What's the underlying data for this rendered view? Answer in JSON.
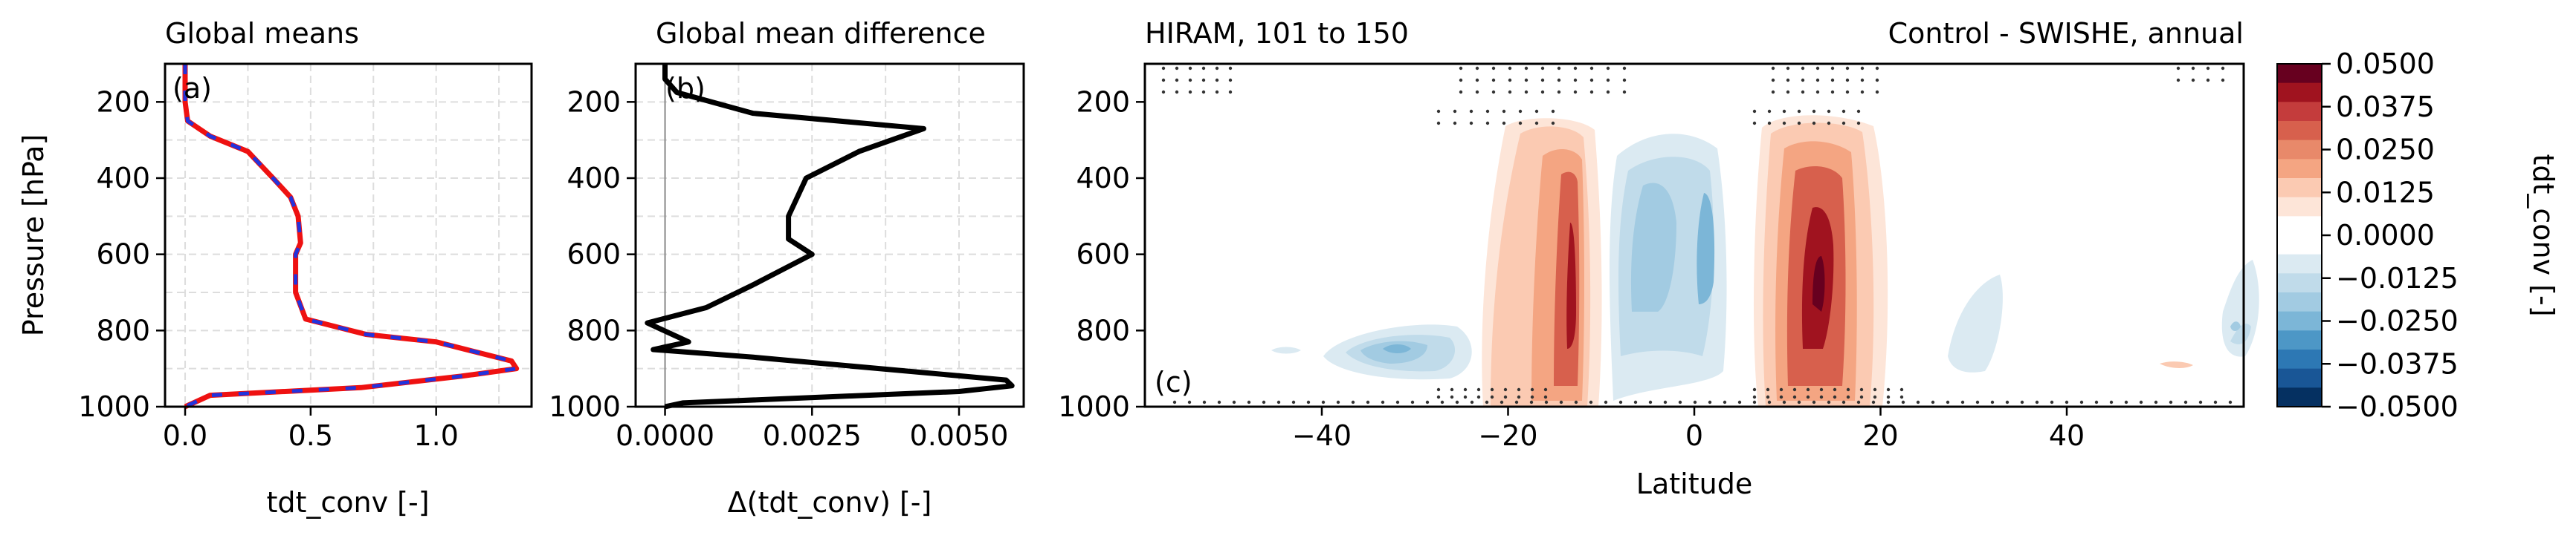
{
  "chart_data": [
    {
      "id": "a",
      "type": "line",
      "title": "Global means",
      "panel_label": "(a)",
      "xlabel": "tdt_conv [-]",
      "ylabel": "Pressure [hPa]",
      "xlim": [
        -0.08,
        1.38
      ],
      "ylim": [
        1000,
        100
      ],
      "xticks": [
        0.0,
        0.5,
        1.0
      ],
      "xtick_labels": [
        "0.0",
        "0.5",
        "1.0"
      ],
      "yticks": [
        200,
        400,
        600,
        800,
        1000
      ],
      "grid": true,
      "series": [
        {
          "color": "#ee1111",
          "style": "solid",
          "points": [
            [
              0.0,
              100
            ],
            [
              0.0,
              150
            ],
            [
              0.0,
              200
            ],
            [
              0.01,
              250
            ],
            [
              0.1,
              290
            ],
            [
              0.25,
              330
            ],
            [
              0.35,
              400
            ],
            [
              0.42,
              450
            ],
            [
              0.45,
              500
            ],
            [
              0.46,
              570
            ],
            [
              0.44,
              600
            ],
            [
              0.44,
              640
            ],
            [
              0.44,
              700
            ],
            [
              0.48,
              770
            ],
            [
              0.72,
              810
            ],
            [
              1.0,
              830
            ],
            [
              1.3,
              880
            ],
            [
              1.32,
              900
            ],
            [
              1.1,
              920
            ],
            [
              0.7,
              950
            ],
            [
              0.1,
              970
            ],
            [
              0.0,
              1000
            ]
          ]
        },
        {
          "color": "#2233dd",
          "style": "dashed",
          "points": [
            [
              0.0,
              100
            ],
            [
              0.0,
              150
            ],
            [
              0.0,
              200
            ],
            [
              0.01,
              250
            ],
            [
              0.1,
              290
            ],
            [
              0.25,
              330
            ],
            [
              0.35,
              400
            ],
            [
              0.42,
              450
            ],
            [
              0.45,
              500
            ],
            [
              0.46,
              570
            ],
            [
              0.44,
              600
            ],
            [
              0.44,
              640
            ],
            [
              0.44,
              700
            ],
            [
              0.48,
              770
            ],
            [
              0.72,
              810
            ],
            [
              1.0,
              830
            ],
            [
              1.3,
              880
            ],
            [
              1.32,
              900
            ],
            [
              1.1,
              920
            ],
            [
              0.7,
              950
            ],
            [
              0.1,
              970
            ],
            [
              0.0,
              1000
            ]
          ]
        }
      ]
    },
    {
      "id": "b",
      "type": "line",
      "title": "Global mean difference",
      "panel_label": "(b)",
      "xlabel": "Δ(tdt_conv) [-]",
      "xlim": [
        -0.0005,
        0.0061
      ],
      "ylim": [
        1000,
        100
      ],
      "xticks": [
        0.0,
        0.0025,
        0.005
      ],
      "xtick_labels": [
        "0.0000",
        "0.0025",
        "0.0050"
      ],
      "yticks": [
        200,
        400,
        600,
        800,
        1000
      ],
      "grid": true,
      "zero_line": 0.0,
      "series": [
        {
          "color": "#000000",
          "style": "solid",
          "points": [
            [
              0.0,
              100
            ],
            [
              0.0,
              140
            ],
            [
              0.0002,
              175
            ],
            [
              0.0015,
              230
            ],
            [
              0.0044,
              270
            ],
            [
              0.0033,
              330
            ],
            [
              0.0024,
              400
            ],
            [
              0.0021,
              500
            ],
            [
              0.0021,
              560
            ],
            [
              0.0025,
              600
            ],
            [
              0.0015,
              680
            ],
            [
              0.0007,
              740
            ],
            [
              -0.0003,
              780
            ],
            [
              0.0004,
              830
            ],
            [
              -0.0002,
              850
            ],
            [
              0.0015,
              870
            ],
            [
              0.0058,
              930
            ],
            [
              0.0059,
              945
            ],
            [
              0.005,
              960
            ],
            [
              0.0003,
              990
            ],
            [
              0.0,
              1000
            ]
          ]
        }
      ]
    },
    {
      "id": "c",
      "type": "heatmap",
      "title": "HIRAM, 101 to 150",
      "title_right": "Control - SWISHE, annual",
      "panel_label": "(c)",
      "xlabel": "Latitude",
      "xlim": [
        -59,
        59
      ],
      "ylim": [
        1000,
        100
      ],
      "xticks": [
        -40,
        -20,
        0,
        20,
        40
      ],
      "xtick_labels": [
        "−40",
        "−20",
        "0",
        "20",
        "40"
      ],
      "yticks": [
        200,
        400,
        600,
        800,
        1000
      ],
      "colorbar": {
        "label": "tdt_conv [-]",
        "tick_labels": [
          "0.0500",
          "0.0375",
          "0.0250",
          "0.0125",
          "0.0000",
          "−0.0125",
          "−0.0250",
          "−0.0375",
          "−0.0500"
        ],
        "levels_top_to_bottom": [
          "#67001f",
          "#a0131f",
          "#c43c3c",
          "#d7604d",
          "#e8896a",
          "#f4a582",
          "#fbcab2",
          "#fde5d8",
          "#ffffff",
          "#ffffff",
          "#dbeaf2",
          "#c0dbea",
          "#a2cbe2",
          "#7cb6d7",
          "#4d97c6",
          "#2d78b4",
          "#195696",
          "#053061"
        ]
      }
    }
  ]
}
